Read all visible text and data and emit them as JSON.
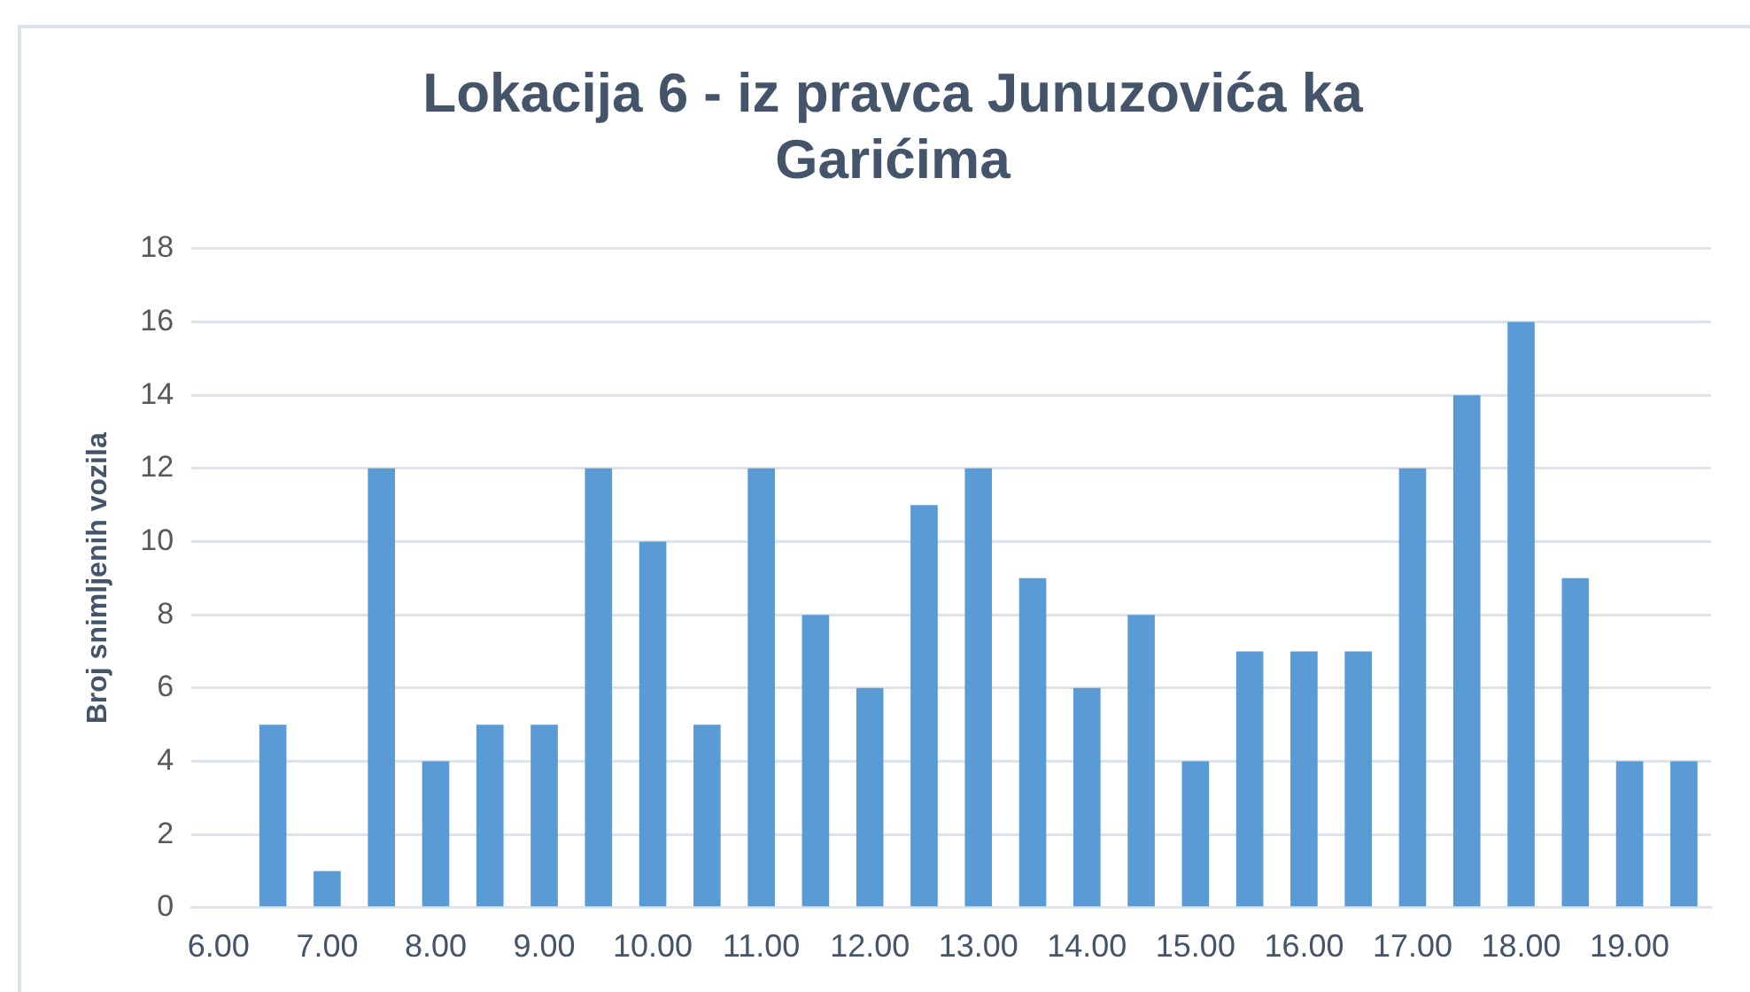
{
  "chart_data": {
    "type": "bar",
    "title": [
      "Lokacija 6 - iz pravca Junuzovića ka",
      "Garićima"
    ],
    "ylabel": "Broj snimljenih vozila",
    "categories": [
      "6.00",
      null,
      "7.00",
      null,
      "8.00",
      null,
      "9.00",
      null,
      "10.00",
      null,
      "11.00",
      null,
      "12.00",
      null,
      "13.00",
      null,
      "14.00",
      null,
      "15.00",
      null,
      "16.00",
      null,
      "17.00",
      null,
      "18.00",
      null,
      "19.00",
      null
    ],
    "values": [
      0,
      5,
      1,
      12,
      4,
      5,
      5,
      12,
      10,
      5,
      12,
      8,
      6,
      11,
      12,
      9,
      6,
      8,
      4,
      7,
      7,
      7,
      12,
      14,
      16,
      9,
      4,
      4
    ],
    "color": "#5b9bd5",
    "ylim": [
      0,
      18
    ],
    "yticks": [
      0,
      2,
      4,
      6,
      8,
      10,
      12,
      14,
      16,
      18
    ],
    "grid": "y",
    "legend": false
  }
}
